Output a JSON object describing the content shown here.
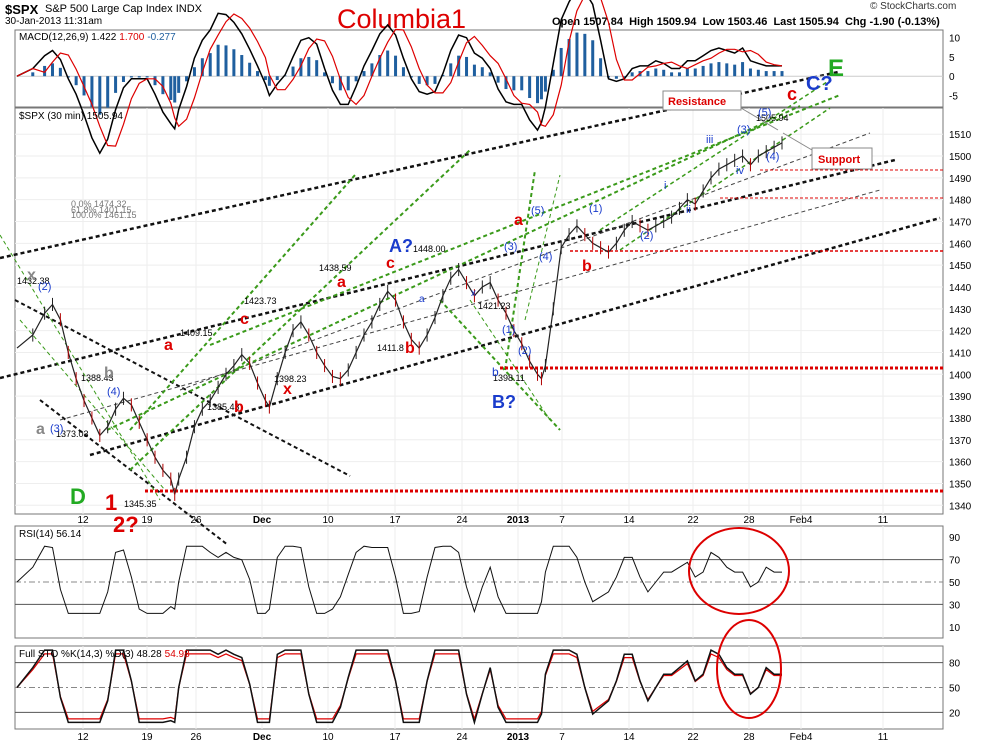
{
  "header": {
    "symbol": "$SPX",
    "name": "S&P 500 Large Cap Index",
    "exchange": "INDX",
    "datetime": "30-Jan-2013 11:31am",
    "title": "Columbia1",
    "open_label": "Open",
    "open": "1507.84",
    "high_label": "High",
    "high": "1509.94",
    "low_label": "Low",
    "low": "1503.46",
    "last_label": "Last",
    "last": "1505.94",
    "chg_label": "Chg",
    "chg": "-1.90 (-0.13%)",
    "credit": "© StockCharts.com"
  },
  "chart_data": [
    {
      "type": "line",
      "title": "MACD(12,26,9)",
      "legend": [
        "MACD(12,26,9) 1.422",
        "1.700",
        "-0.277"
      ],
      "values": {
        "macd": 1.422,
        "signal": 1.7,
        "histogram": -0.277
      },
      "colors": {
        "macd": "#000000",
        "signal": "#dd0000",
        "histogram": "#1f5f9f"
      },
      "yticks": [
        "10",
        "5",
        "0",
        "-5"
      ],
      "ylim": [
        -8,
        12
      ]
    },
    {
      "type": "line",
      "title": "$SPX (30 min)",
      "legend": [
        "$SPX (30 min) 1505.94"
      ],
      "yticks": [
        "1510",
        "1500",
        "1490",
        "1480",
        "1470",
        "1460",
        "1450",
        "1440",
        "1430",
        "1420",
        "1410",
        "1400",
        "1390",
        "1380",
        "1370",
        "1360",
        "1350",
        "1340"
      ],
      "ylim": [
        1336,
        1522
      ],
      "xticks": [
        "12",
        "19",
        "26",
        "Dec",
        "10",
        "17",
        "24",
        "2013",
        "7",
        "14",
        "22",
        "28",
        "Feb4",
        "11"
      ],
      "series_price": [
        [
          0,
          1412
        ],
        [
          4,
          1418
        ],
        [
          7,
          1428
        ],
        [
          9,
          1432
        ],
        [
          11,
          1425
        ],
        [
          13,
          1410
        ],
        [
          15,
          1398
        ],
        [
          17,
          1388
        ],
        [
          19,
          1380
        ],
        [
          21,
          1372
        ],
        [
          23,
          1376
        ],
        [
          25,
          1384
        ],
        [
          27,
          1389
        ],
        [
          29,
          1386
        ],
        [
          31,
          1378
        ],
        [
          33,
          1370
        ],
        [
          35,
          1362
        ],
        [
          37,
          1356
        ],
        [
          39,
          1352
        ],
        [
          40,
          1345
        ],
        [
          41,
          1352
        ],
        [
          43,
          1362
        ],
        [
          45,
          1376
        ],
        [
          47,
          1384
        ],
        [
          49,
          1388
        ],
        [
          51,
          1394
        ],
        [
          53,
          1400
        ],
        [
          55,
          1404
        ],
        [
          57,
          1409
        ],
        [
          59,
          1405
        ],
        [
          61,
          1396
        ],
        [
          63,
          1388
        ],
        [
          64,
          1385
        ],
        [
          66,
          1398
        ],
        [
          68,
          1410
        ],
        [
          70,
          1420
        ],
        [
          72,
          1424
        ],
        [
          74,
          1418
        ],
        [
          76,
          1410
        ],
        [
          78,
          1404
        ],
        [
          80,
          1399
        ],
        [
          82,
          1398
        ],
        [
          84,
          1402
        ],
        [
          86,
          1410
        ],
        [
          88,
          1418
        ],
        [
          90,
          1424
        ],
        [
          92,
          1432
        ],
        [
          94,
          1438
        ],
        [
          96,
          1434
        ],
        [
          98,
          1424
        ],
        [
          100,
          1416
        ],
        [
          102,
          1412
        ],
        [
          104,
          1418
        ],
        [
          106,
          1426
        ],
        [
          108,
          1436
        ],
        [
          110,
          1444
        ],
        [
          112,
          1448
        ],
        [
          114,
          1442
        ],
        [
          116,
          1436
        ],
        [
          118,
          1440
        ],
        [
          120,
          1442
        ],
        [
          122,
          1434
        ],
        [
          124,
          1428
        ],
        [
          126,
          1420
        ],
        [
          128,
          1414
        ],
        [
          130,
          1406
        ],
        [
          132,
          1400
        ],
        [
          133,
          1398
        ],
        [
          134,
          1404
        ],
        [
          136,
          1430
        ],
        [
          138,
          1458
        ],
        [
          140,
          1464
        ],
        [
          142,
          1468
        ],
        [
          144,
          1464
        ],
        [
          146,
          1460
        ],
        [
          148,
          1458
        ],
        [
          150,
          1456
        ],
        [
          152,
          1460
        ],
        [
          154,
          1466
        ],
        [
          156,
          1470
        ],
        [
          158,
          1468
        ],
        [
          160,
          1466
        ],
        [
          162,
          1468
        ],
        [
          164,
          1470
        ],
        [
          166,
          1472
        ],
        [
          168,
          1476
        ],
        [
          170,
          1480
        ],
        [
          172,
          1478
        ],
        [
          174,
          1484
        ],
        [
          176,
          1490
        ],
        [
          178,
          1494
        ],
        [
          180,
          1496
        ],
        [
          182,
          1498
        ],
        [
          184,
          1500
        ],
        [
          186,
          1496
        ],
        [
          188,
          1500
        ],
        [
          190,
          1502
        ],
        [
          192,
          1504
        ],
        [
          194,
          1506
        ]
      ],
      "labels": {
        "price_annotations": [
          "1432.38",
          "1388.43",
          "1373.03",
          "1345.35",
          "1409.15",
          "1385.43",
          "1423.73",
          "1398.23",
          "1438.59",
          "1411.8",
          "1448.00",
          "1421.23",
          "1398.11",
          "1505.94"
        ],
        "fib": [
          "0.0% 1474.32",
          "61.8% 1401.15",
          "100.0% 1461.15"
        ],
        "red_waves": [
          "a",
          "b",
          "c",
          "x",
          "a",
          "b",
          "c",
          "a",
          "b",
          "c"
        ],
        "blue_waves": [
          "(2)",
          "(3)",
          "(4)",
          "(5)",
          "(1)",
          "(2)",
          "(3)",
          "(4)",
          "(5)",
          "(1)",
          "(2)",
          "(3)",
          "(4)",
          "a",
          "b",
          "x"
        ],
        "navy_waves": [
          "i",
          "ii",
          "iii",
          "iv"
        ],
        "big_labels": {
          "A": "A?",
          "B": "B?",
          "C": "C?",
          "D": "D",
          "E": "E",
          "one": "1",
          "two": "2?",
          "c_top": "c"
        },
        "callouts": {
          "resistance": "Resistance",
          "support": "Support"
        },
        "gray_waves": [
          "x",
          "b",
          "a"
        ]
      },
      "grid": true
    },
    {
      "type": "line",
      "title": "RSI(14)",
      "legend": [
        "RSI(14) 56.14"
      ],
      "yticks": [
        "90",
        "70",
        "50",
        "30",
        "10"
      ],
      "ylim": [
        0,
        100
      ]
    },
    {
      "type": "line",
      "title": "Full STO %K(14,3) %D(3)",
      "legend": [
        "Full STO %K(14,3) %D(3) 48.28",
        "54.98"
      ],
      "yticks": [
        "80",
        "50",
        "20"
      ],
      "ylim": [
        0,
        100
      ]
    }
  ]
}
